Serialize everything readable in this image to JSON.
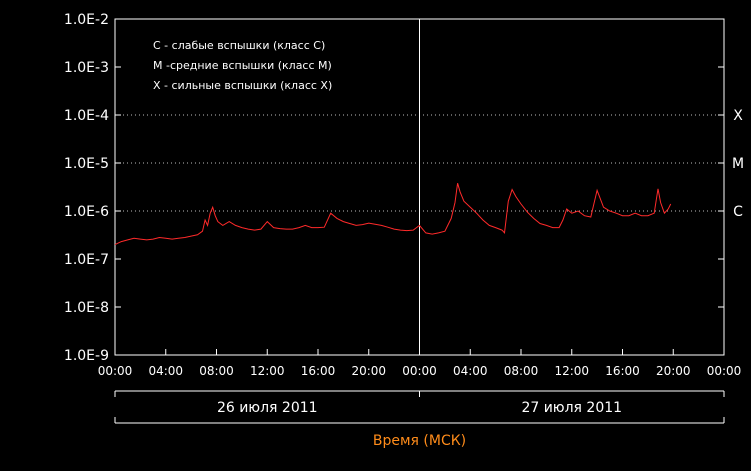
{
  "chart_data": {
    "type": "line",
    "title": "",
    "xlabel": "Время (МСК)",
    "ylabel": "",
    "y_scale": "log",
    "ylim": [
      1e-09,
      0.01
    ],
    "grid": false,
    "legend_position": "top-left",
    "y_ticks": [
      "1.0E-9",
      "1.0E-8",
      "1.0E-7",
      "1.0E-6",
      "1.0E-5",
      "1.0E-4",
      "1.0E-3",
      "1.0E-2"
    ],
    "x_ticks": [
      "00:00",
      "04:00",
      "08:00",
      "12:00",
      "16:00",
      "20:00",
      "00:00",
      "04:00",
      "08:00",
      "12:00",
      "16:00",
      "20:00",
      "00:00"
    ],
    "x_range_hours": [
      0,
      48
    ],
    "day_labels": [
      "26 июля 2011",
      "27 июля 2011"
    ],
    "legend": [
      "C - слабые вспышки (класс C)",
      "M -средние вспышки (класс M)",
      "X - сильные вспышки (класс X)"
    ],
    "class_levels": [
      {
        "label": "X",
        "value": 0.0001
      },
      {
        "label": "M",
        "value": 1e-05
      },
      {
        "label": "C",
        "value": 1e-06
      }
    ],
    "series": [
      {
        "color": "#ff2a2a",
        "x_hours": [
          0,
          0.5,
          1,
          1.5,
          2,
          2.5,
          3,
          3.5,
          4,
          4.5,
          5,
          5.5,
          6,
          6.5,
          6.9,
          7.1,
          7.3,
          7.5,
          7.7,
          7.9,
          8.1,
          8.5,
          9,
          9.5,
          10,
          10.5,
          11,
          11.5,
          12,
          12.5,
          13,
          13.5,
          14,
          14.5,
          15,
          15.5,
          16,
          16.5,
          17,
          17.5,
          18,
          18.5,
          19,
          19.5,
          20,
          20.5,
          21,
          21.5,
          22,
          22.5,
          23,
          23.5,
          24,
          24.5,
          25,
          25.5,
          26,
          26.5,
          26.8,
          27,
          27.2,
          27.5,
          28,
          28.5,
          29,
          29.5,
          30,
          30.5,
          30.7,
          31,
          31.3,
          31.6,
          32,
          32.5,
          33,
          33.5,
          34,
          34.5,
          35,
          35.3,
          35.6,
          36,
          36.5,
          37,
          37.5,
          38,
          38.5,
          39,
          39.5,
          40,
          40.5,
          41,
          41.5,
          42,
          42.5,
          42.8,
          43,
          43.3,
          43.6,
          43.8
        ],
        "values": [
          2e-07,
          2.3e-07,
          2.5e-07,
          2.7e-07,
          2.6e-07,
          2.5e-07,
          2.6e-07,
          2.8e-07,
          2.7e-07,
          2.6e-07,
          2.7e-07,
          2.8e-07,
          3e-07,
          3.2e-07,
          3.8e-07,
          6.5e-07,
          5e-07,
          9e-07,
          1.2e-06,
          8e-07,
          6e-07,
          5e-07,
          6e-07,
          5e-07,
          4.5e-07,
          4.2e-07,
          4e-07,
          4.2e-07,
          6e-07,
          4.5e-07,
          4.3e-07,
          4.2e-07,
          4.2e-07,
          4.5e-07,
          5e-07,
          4.5e-07,
          4.5e-07,
          4.6e-07,
          9e-07,
          7e-07,
          6e-07,
          5.5e-07,
          5e-07,
          5.2e-07,
          5.6e-07,
          5.3e-07,
          5e-07,
          4.6e-07,
          4.2e-07,
          4e-07,
          3.9e-07,
          4e-07,
          5e-07,
          3.5e-07,
          3.3e-07,
          3.5e-07,
          3.8e-07,
          7e-07,
          1.5e-06,
          3.8e-06,
          2.5e-06,
          1.6e-06,
          1.2e-06,
          9e-07,
          6.5e-07,
          5e-07,
          4.5e-07,
          4e-07,
          3.5e-07,
          1.6e-06,
          2.8e-06,
          2e-06,
          1.4e-06,
          9.5e-07,
          7e-07,
          5.5e-07,
          5e-07,
          4.5e-07,
          4.5e-07,
          6.5e-07,
          1.1e-06,
          9e-07,
          1e-06,
          8e-07,
          7.5e-07,
          2.7e-06,
          1.2e-06,
          1e-06,
          9e-07,
          8e-07,
          8e-07,
          9e-07,
          8e-07,
          8e-07,
          9e-07,
          2.9e-06,
          1.5e-06,
          9e-07,
          1.1e-06,
          1.4e-06
        ]
      }
    ]
  }
}
